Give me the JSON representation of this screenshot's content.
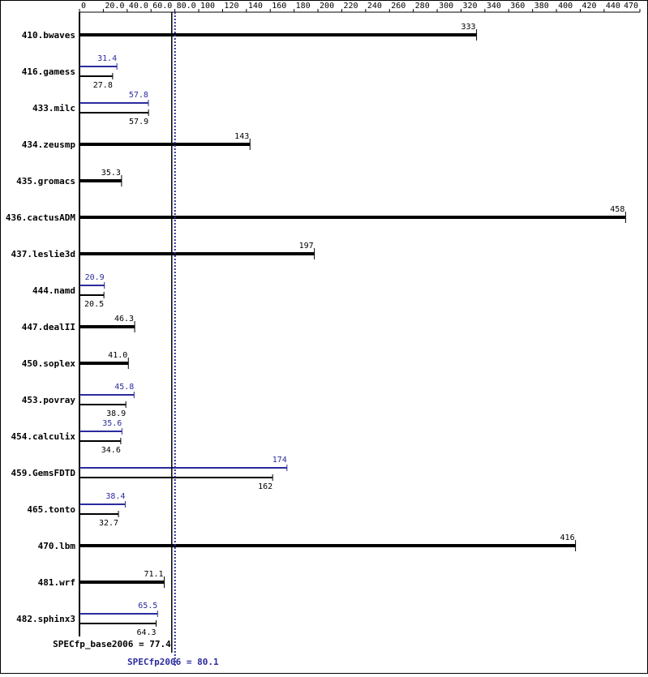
{
  "chart_data": {
    "type": "bar",
    "categories": [
      "410.bwaves",
      "416.gamess",
      "433.milc",
      "434.zeusmp",
      "435.gromacs",
      "436.cactusADM",
      "437.leslie3d",
      "444.namd",
      "447.dealII",
      "450.soplex",
      "453.povray",
      "454.calculix",
      "459.GemsFDTD",
      "465.tonto",
      "470.lbm",
      "481.wrf",
      "482.sphinx3"
    ],
    "series": [
      {
        "color": "#000000",
        "values": [
          333,
          27.8,
          57.9,
          143,
          35.3,
          458,
          197,
          20.5,
          46.3,
          41.0,
          38.9,
          34.6,
          162,
          32.7,
          416,
          71.1,
          64.3
        ],
        "value_labels": [
          "333",
          "27.8",
          "57.9",
          "143",
          "35.3",
          "458",
          "197",
          "20.5",
          "46.3",
          "41.0",
          "38.9",
          "34.6",
          "162",
          "32.7",
          "416",
          "71.1",
          "64.3"
        ]
      },
      {
        "color": "#2b2b9e",
        "values": [
          null,
          31.4,
          57.8,
          null,
          null,
          null,
          null,
          20.9,
          null,
          null,
          45.8,
          35.6,
          174,
          38.4,
          null,
          null,
          65.5
        ]
      }
    ],
    "xlim": [
      0,
      470
    ],
    "xticks": [
      0,
      {
        "value": 20,
        "label": "20.0"
      },
      {
        "value": 40,
        "label": "40.0"
      },
      {
        "value": 60,
        "label": "60.0"
      },
      {
        "value": 80,
        "label": "80.0"
      },
      100,
      120,
      140,
      160,
      180,
      200,
      220,
      240,
      260,
      280,
      300,
      320,
      340,
      360,
      380,
      400,
      420,
      440,
      470
    ],
    "reference_lines": [
      {
        "label": "SPECfp_base2006 = 77.4",
        "value": 77.4,
        "color": "#000000"
      },
      {
        "label": "SPECfp2006 = 80.1",
        "value": 80.1,
        "color": "#2b2b9e"
      }
    ]
  }
}
